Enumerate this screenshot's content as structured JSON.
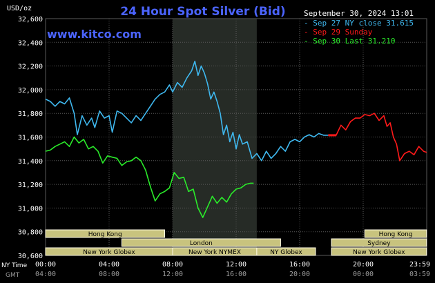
{
  "colors": {
    "background": "#000000",
    "grid": "#5a5a5a",
    "highlight_band": "#262b26",
    "title": "#4b64ff",
    "site": "#4b64ff",
    "ny_close_series": "#3fb8ef",
    "sunday_series": "#ff1a1a",
    "today_series": "#2aeb2a",
    "session_fill": "#c8c37e",
    "session_border": "#fffbe6",
    "session_text": "#000000",
    "text": "#ffffff",
    "muted_text": "#9a9a9a"
  },
  "header": {
    "title": "24 Hour Spot Silver (Bid)",
    "site": "www.kitco.com",
    "date": "September 30, 2024 13:01",
    "y_unit": "USD/oz"
  },
  "chart_data": {
    "type": "line",
    "title": "24 Hour Spot Silver (Bid)",
    "ylabel": "USD/oz",
    "xlabel": "",
    "ylim": [
      30600,
      32600
    ],
    "xlim": [
      0,
      24
    ],
    "y_ticks": [
      "32,600",
      "32,400",
      "32,200",
      "32,000",
      "31,800",
      "31,600",
      "31,400",
      "31,200",
      "31,000",
      "30,800",
      "30,600"
    ],
    "x_ticks": [
      {
        "ny": "00:00",
        "gmt": "04:00"
      },
      {
        "ny": "04:00",
        "gmt": "08:00"
      },
      {
        "ny": "08:00",
        "gmt": "12:00"
      },
      {
        "ny": "12:00",
        "gmt": "16:00"
      },
      {
        "ny": "16:00",
        "gmt": "20:00"
      },
      {
        "ny": "20:00",
        "gmt": "00:00"
      },
      {
        "ny": "23:59",
        "gmt": "03:59"
      }
    ],
    "x_axis_labels": {
      "ny": "NY Time",
      "gmt": "GMT"
    },
    "highlight_range": [
      8.0,
      13.3
    ],
    "grid": true,
    "legend_placement": "top-right",
    "legend": [
      {
        "label": "Sep 27 NY close 31.615",
        "color": "#3fb8ef"
      },
      {
        "label": "Sep 29 Sunday",
        "color": "#ff1a1a"
      },
      {
        "label": "Sep 30 Last 31.210",
        "color": "#2aeb2a"
      }
    ],
    "series": [
      {
        "name": "Sep 27 NY close 31.615",
        "color": "#3fb8ef",
        "x": [
          0.0,
          0.3,
          0.6,
          0.9,
          1.2,
          1.5,
          1.8,
          2.0,
          2.3,
          2.6,
          2.9,
          3.1,
          3.4,
          3.7,
          4.0,
          4.2,
          4.5,
          4.8,
          5.1,
          5.4,
          5.7,
          6.0,
          6.3,
          6.6,
          6.9,
          7.2,
          7.5,
          7.8,
          8.0,
          8.3,
          8.6,
          8.9,
          9.2,
          9.4,
          9.6,
          9.8,
          10.0,
          10.2,
          10.4,
          10.6,
          10.8,
          11.0,
          11.2,
          11.4,
          11.6,
          11.8,
          12.0,
          12.2,
          12.4,
          12.7,
          13.0,
          13.3,
          13.6,
          13.9,
          14.2,
          14.5,
          14.8,
          15.1,
          15.4,
          15.7,
          16.0,
          16.3,
          16.6,
          16.9,
          17.2,
          17.5,
          17.8
        ],
        "values": [
          31920,
          31900,
          31860,
          31900,
          31880,
          31930,
          31800,
          31620,
          31780,
          31700,
          31760,
          31680,
          31820,
          31760,
          31780,
          31640,
          31820,
          31800,
          31760,
          31720,
          31780,
          31740,
          31800,
          31860,
          31920,
          31960,
          31980,
          32040,
          31980,
          32060,
          32020,
          32100,
          32160,
          32240,
          32120,
          32200,
          32140,
          32050,
          31920,
          31980,
          31900,
          31800,
          31620,
          31700,
          31560,
          31640,
          31500,
          31620,
          31540,
          31560,
          31420,
          31460,
          31400,
          31480,
          31420,
          31460,
          31520,
          31480,
          31560,
          31580,
          31560,
          31600,
          31620,
          31600,
          31630,
          31615,
          31615
        ]
      },
      {
        "name": "Sep 29 Sunday",
        "color": "#ff1a1a",
        "x": [
          17.8,
          18.3,
          18.6,
          18.9,
          19.2,
          19.5,
          19.8,
          20.1,
          20.4,
          20.7,
          21.0,
          21.3,
          21.5,
          21.7,
          21.9,
          22.1,
          22.3,
          22.6,
          22.9,
          23.2,
          23.5,
          23.8,
          23.99
        ],
        "values": [
          31615,
          31615,
          31700,
          31660,
          31730,
          31760,
          31760,
          31790,
          31780,
          31800,
          31740,
          31780,
          31690,
          31720,
          31600,
          31540,
          31400,
          31460,
          31480,
          31450,
          31520,
          31480,
          31470
        ]
      },
      {
        "name": "Sep 30 Last 31.210",
        "color": "#2aeb2a",
        "x": [
          0.0,
          0.3,
          0.6,
          0.9,
          1.2,
          1.5,
          1.8,
          2.1,
          2.4,
          2.7,
          3.0,
          3.3,
          3.6,
          3.9,
          4.2,
          4.5,
          4.8,
          5.1,
          5.4,
          5.7,
          6.0,
          6.3,
          6.6,
          6.9,
          7.2,
          7.5,
          7.8,
          8.1,
          8.4,
          8.7,
          9.0,
          9.3,
          9.6,
          9.9,
          10.2,
          10.5,
          10.8,
          11.1,
          11.4,
          11.7,
          12.0,
          12.3,
          12.6,
          12.9,
          13.1
        ],
        "values": [
          31480,
          31490,
          31520,
          31540,
          31560,
          31520,
          31600,
          31550,
          31580,
          31500,
          31520,
          31480,
          31380,
          31440,
          31430,
          31420,
          31360,
          31390,
          31400,
          31430,
          31400,
          31320,
          31180,
          31060,
          31120,
          31140,
          31170,
          31300,
          31250,
          31260,
          31140,
          31160,
          31000,
          30920,
          31010,
          31100,
          31040,
          31090,
          31050,
          31120,
          31160,
          31170,
          31200,
          31210,
          31210
        ]
      }
    ]
  },
  "session_bars": [
    {
      "label": "Hong Kong",
      "row": 0,
      "start": 0.0,
      "end": 7.5
    },
    {
      "label": "Hong Kong",
      "row": 0,
      "start": 20.1,
      "end": 23.99
    },
    {
      "label": "London",
      "row": 1,
      "start": 4.8,
      "end": 14.8
    },
    {
      "label": "Sydney",
      "row": 1,
      "start": 18.0,
      "end": 23.99
    },
    {
      "label": "New York Globex",
      "row": 2,
      "start": 0.0,
      "end": 8.0
    },
    {
      "label": "New York NYMEX",
      "row": 2,
      "start": 8.0,
      "end": 13.3
    },
    {
      "label": "NY Globex",
      "row": 2,
      "start": 13.3,
      "end": 17.0
    },
    {
      "label": "New York Globex",
      "row": 2,
      "start": 18.0,
      "end": 23.99
    }
  ]
}
